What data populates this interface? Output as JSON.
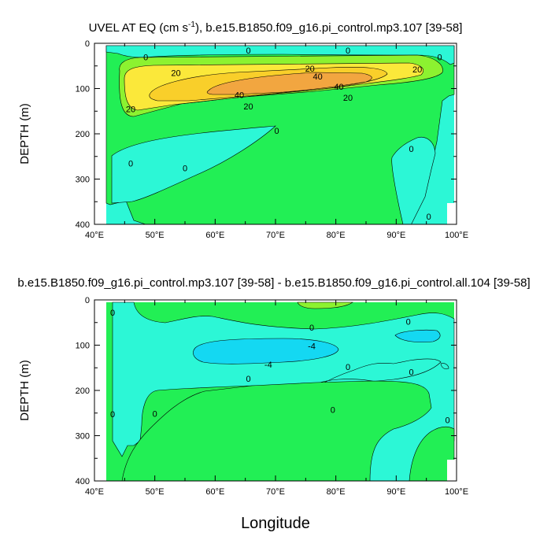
{
  "colors": {
    "deep_cyan": "#14d8f2",
    "cyan": "#2cf7d6",
    "green": "#22ef55",
    "light_green": "#8cf230",
    "yellow": "#fbe83a",
    "gold": "#f9cf2a",
    "orange": "#f2a640",
    "white": "#ffffff"
  },
  "chart_data": [
    {
      "type": "contour",
      "title_main": "UVEL AT EQ (cm s",
      "title_sup": "-1",
      "title_rest": "), b.e15.B1850.f09_g16.pi_control.mp3.107 [39-58]",
      "xlabel": "",
      "ylabel": "DEPTH (m)",
      "xlim": [
        40,
        100
      ],
      "ylim": [
        400,
        0
      ],
      "y_inverted": true,
      "xticks": [
        "40°E",
        "50°E",
        "60°E",
        "70°E",
        "80°E",
        "90°E",
        "100°E"
      ],
      "yticks": [
        "0",
        "100",
        "200",
        "300",
        "400"
      ],
      "contour_labels": [
        {
          "text": "0",
          "x": 48.5,
          "y": 30
        },
        {
          "text": "0",
          "x": 65.5,
          "y": 16
        },
        {
          "text": "0",
          "x": 82,
          "y": 16
        },
        {
          "text": "0",
          "x": 97.2,
          "y": 30
        },
        {
          "text": "20",
          "x": 53.5,
          "y": 65
        },
        {
          "text": "20",
          "x": 75.7,
          "y": 56
        },
        {
          "text": "20",
          "x": 93.5,
          "y": 57
        },
        {
          "text": "20",
          "x": 46,
          "y": 145
        },
        {
          "text": "20",
          "x": 65.5,
          "y": 139
        },
        {
          "text": "20",
          "x": 82,
          "y": 120
        },
        {
          "text": "40",
          "x": 77,
          "y": 73
        },
        {
          "text": "40",
          "x": 80.5,
          "y": 96
        },
        {
          "text": "40",
          "x": 64,
          "y": 114
        },
        {
          "text": "0",
          "x": 70.2,
          "y": 193
        },
        {
          "text": "0",
          "x": 46,
          "y": 265
        },
        {
          "text": "0",
          "x": 55,
          "y": 276
        },
        {
          "text": "0",
          "x": 92.5,
          "y": 233
        },
        {
          "text": "0",
          "x": 95.4,
          "y": 383
        }
      ]
    },
    {
      "type": "contour",
      "title": "b.e15.B1850.f09_g16.pi_control.mp3.107 [39-58] - b.e15.B1850.f09_g16.pi_control.all.104 [39-58]",
      "xlabel": "Longitude",
      "ylabel": "DEPTH (m)",
      "xlim": [
        40,
        100
      ],
      "ylim": [
        400,
        0
      ],
      "y_inverted": true,
      "xticks": [
        "40°E",
        "50°E",
        "60°E",
        "70°E",
        "80°E",
        "90°E",
        "100°E"
      ],
      "yticks": [
        "0",
        "100",
        "200",
        "300",
        "400"
      ],
      "contour_labels": [
        {
          "text": "0",
          "x": 43,
          "y": 28
        },
        {
          "text": "0",
          "x": 76,
          "y": 61
        },
        {
          "text": "0",
          "x": 92,
          "y": 48
        },
        {
          "text": "-4",
          "x": 76,
          "y": 102
        },
        {
          "text": "-4",
          "x": 68.8,
          "y": 143
        },
        {
          "text": "0",
          "x": 82,
          "y": 148
        },
        {
          "text": "0",
          "x": 65.5,
          "y": 174
        },
        {
          "text": "0",
          "x": 92.5,
          "y": 159
        },
        {
          "text": "0",
          "x": 79.5,
          "y": 243
        },
        {
          "text": "0",
          "x": 50,
          "y": 251
        },
        {
          "text": "0",
          "x": 43,
          "y": 252
        },
        {
          "text": "0",
          "x": 98.5,
          "y": 265
        }
      ]
    }
  ]
}
